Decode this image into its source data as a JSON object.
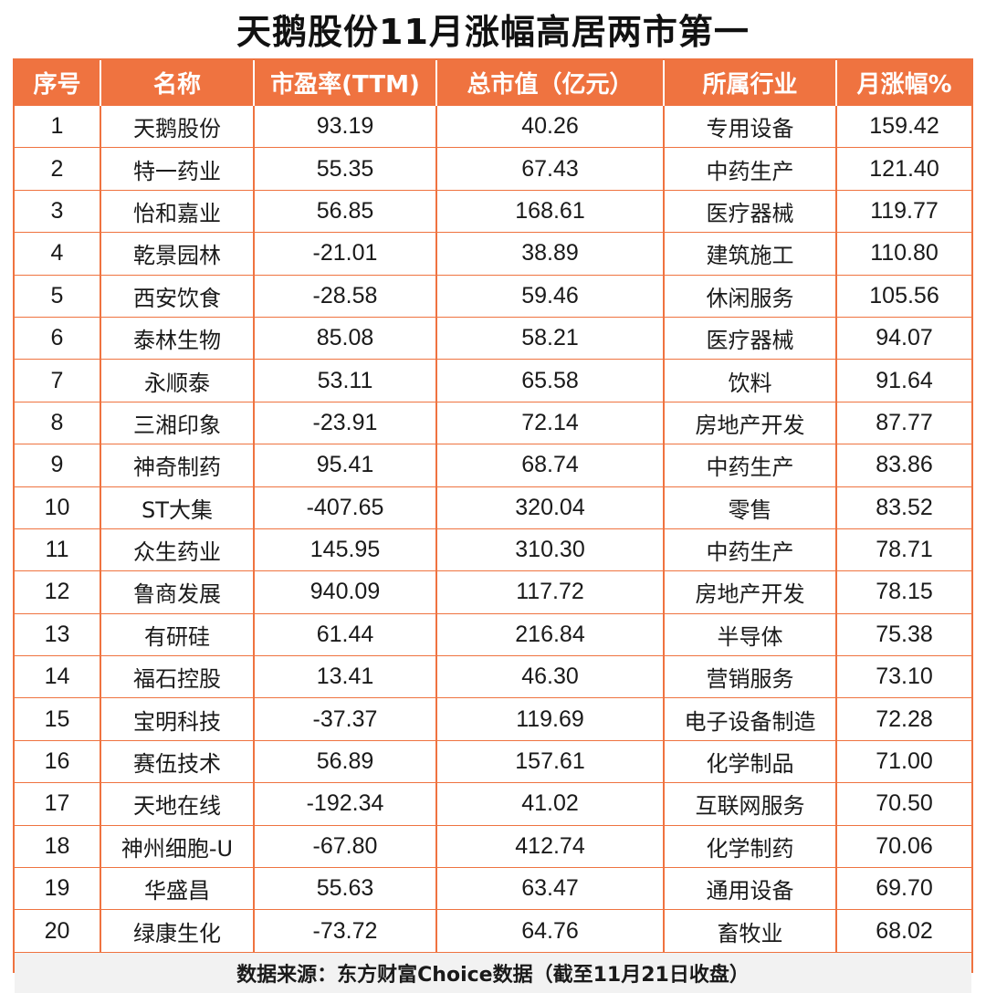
{
  "title": "天鹅股份11月涨幅高居两市第一",
  "colors": {
    "accent": "#ef7340",
    "header_text": "#ffffff",
    "footer_bg": "#f2f2f2"
  },
  "table": {
    "headers": [
      "序号",
      "名称",
      "市盈率(TTM)",
      "总市值（亿元）",
      "所属行业",
      "月涨幅%"
    ],
    "rows": [
      [
        "1",
        "天鹅股份",
        "93.19",
        "40.26",
        "专用设备",
        "159.42"
      ],
      [
        "2",
        "特一药业",
        "55.35",
        "67.43",
        "中药生产",
        "121.40"
      ],
      [
        "3",
        "怡和嘉业",
        "56.85",
        "168.61",
        "医疗器械",
        "119.77"
      ],
      [
        "4",
        "乾景园林",
        "-21.01",
        "38.89",
        "建筑施工",
        "110.80"
      ],
      [
        "5",
        "西安饮食",
        "-28.58",
        "59.46",
        "休闲服务",
        "105.56"
      ],
      [
        "6",
        "泰林生物",
        "85.08",
        "58.21",
        "医疗器械",
        "94.07"
      ],
      [
        "7",
        "永顺泰",
        "53.11",
        "65.58",
        "饮料",
        "91.64"
      ],
      [
        "8",
        "三湘印象",
        "-23.91",
        "72.14",
        "房地产开发",
        "87.77"
      ],
      [
        "9",
        "神奇制药",
        "95.41",
        "68.74",
        "中药生产",
        "83.86"
      ],
      [
        "10",
        "ST大集",
        "-407.65",
        "320.04",
        "零售",
        "83.52"
      ],
      [
        "11",
        "众生药业",
        "145.95",
        "310.30",
        "中药生产",
        "78.71"
      ],
      [
        "12",
        "鲁商发展",
        "940.09",
        "117.72",
        "房地产开发",
        "78.15"
      ],
      [
        "13",
        "有研硅",
        "61.44",
        "216.84",
        "半导体",
        "75.38"
      ],
      [
        "14",
        "福石控股",
        "13.41",
        "46.30",
        "营销服务",
        "73.10"
      ],
      [
        "15",
        "宝明科技",
        "-37.37",
        "119.69",
        "电子设备制造",
        "72.28"
      ],
      [
        "16",
        "赛伍技术",
        "56.89",
        "157.61",
        "化学制品",
        "71.00"
      ],
      [
        "17",
        "天地在线",
        "-192.34",
        "41.02",
        "互联网服务",
        "70.50"
      ],
      [
        "18",
        "神州细胞-U",
        "-67.80",
        "412.74",
        "化学制药",
        "70.06"
      ],
      [
        "19",
        "华盛昌",
        "55.63",
        "63.47",
        "通用设备",
        "69.70"
      ],
      [
        "20",
        "绿康生化",
        "-73.72",
        "64.76",
        "畜牧业",
        "68.02"
      ]
    ]
  },
  "footer": "数据来源：东方财富Choice数据（截至11月21日收盘）"
}
